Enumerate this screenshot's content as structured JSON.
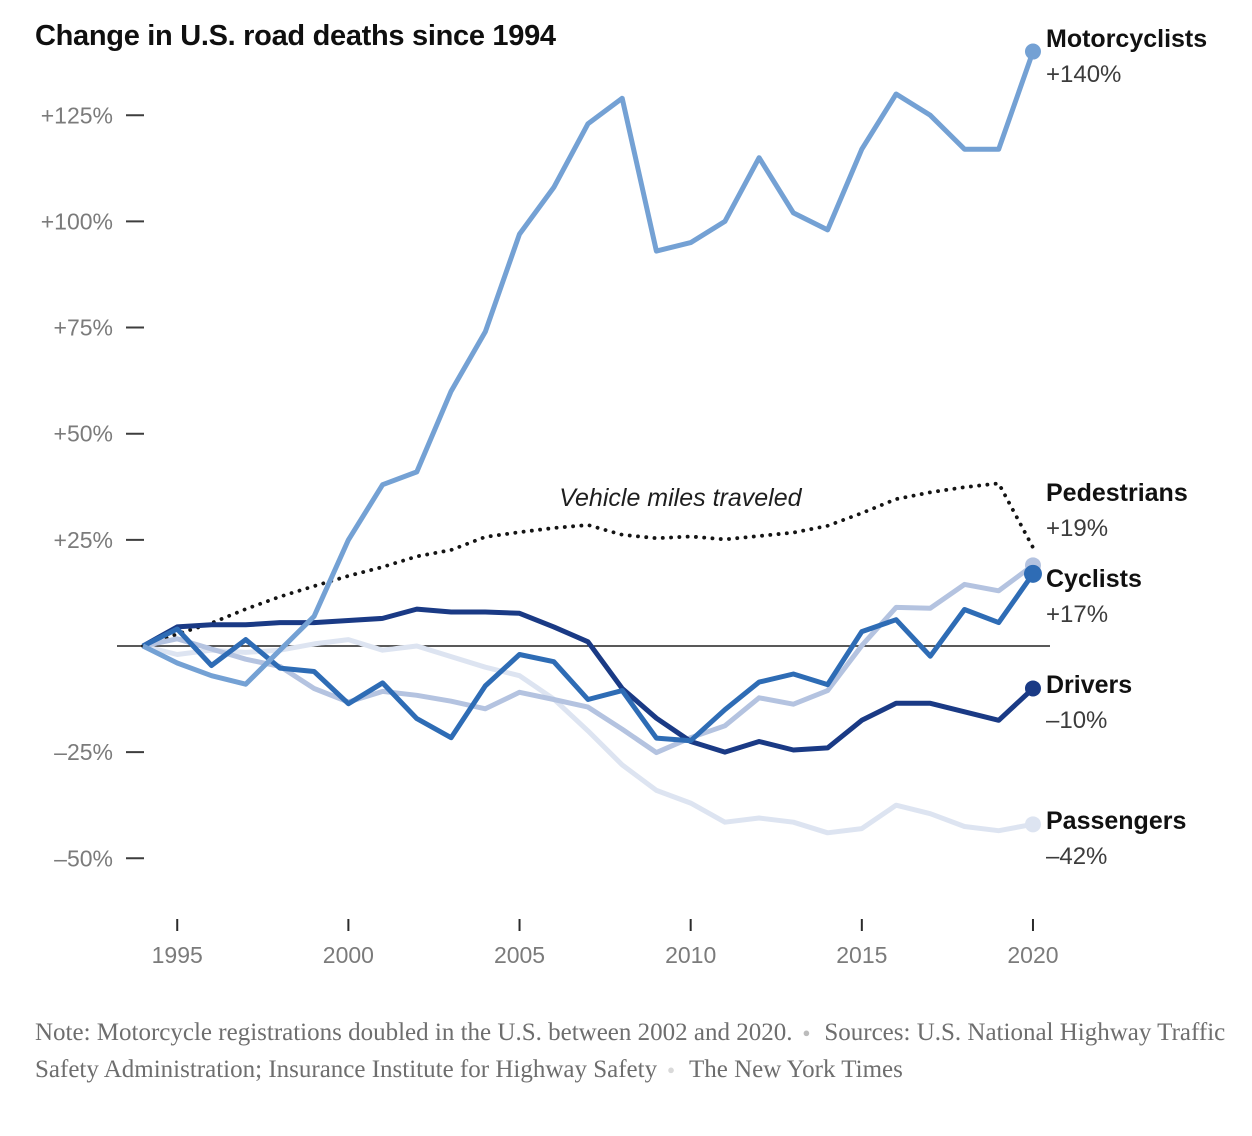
{
  "title": "Change in U.S. road deaths since 1994",
  "chart_data": {
    "type": "line",
    "x": [
      1994,
      1995,
      1996,
      1997,
      1998,
      1999,
      2000,
      2001,
      2002,
      2003,
      2004,
      2005,
      2006,
      2007,
      2008,
      2009,
      2010,
      2011,
      2012,
      2013,
      2014,
      2015,
      2016,
      2017,
      2018,
      2019,
      2020
    ],
    "x_ticks": [
      1995,
      2000,
      2005,
      2010,
      2015,
      2020
    ],
    "y_ticks": [
      {
        "label": "+125%",
        "value": 125
      },
      {
        "label": "+100%",
        "value": 100
      },
      {
        "label": "+75%",
        "value": 75
      },
      {
        "label": "+50%",
        "value": 50
      },
      {
        "label": "+25%",
        "value": 25
      },
      {
        "label": "–25%",
        "value": -25
      },
      {
        "label": "–50%",
        "value": -50
      }
    ],
    "ylim": [
      -60,
      145
    ],
    "baseline_value": 0,
    "grid": "off",
    "annotation": {
      "text": "Vehicle miles traveled",
      "x_year": 2009.7,
      "y_pct": 33
    },
    "series": [
      {
        "key": "motorcyclists",
        "name": "Motorcyclists",
        "label": "Motorcyclists",
        "value_label": "+140%",
        "color": "#74a1d4",
        "style": "solid",
        "z": 6,
        "end_dot": true,
        "values": [
          0,
          -4,
          -7,
          -9,
          -1,
          7,
          25,
          38,
          41,
          60,
          74,
          97,
          108,
          123,
          129,
          93,
          95,
          100,
          115,
          102,
          98,
          117,
          130,
          125,
          117,
          117,
          140
        ]
      },
      {
        "key": "pedestrians",
        "name": "Pedestrians",
        "label": "Pedestrians",
        "value_label": "+19%",
        "color": "#b4c3e0",
        "style": "solid",
        "z": 3,
        "end_dot": true,
        "values": [
          0,
          1.7,
          -0.7,
          -3.1,
          -4.8,
          -10,
          -13.2,
          -10.7,
          -11.6,
          -13,
          -14.8,
          -10.9,
          -12.6,
          -14.4,
          -19.6,
          -25.1,
          -21.6,
          -18.8,
          -12.2,
          -13.7,
          -10.5,
          0.1,
          9.1,
          8.9,
          14.5,
          13,
          19
        ]
      },
      {
        "key": "cyclists",
        "name": "Cyclists",
        "label": "Cyclists",
        "value_label": "+17%",
        "color": "#2e6cb5",
        "style": "solid",
        "z": 5,
        "end_dot": true,
        "values": [
          0,
          4,
          -4.6,
          1.5,
          -5.2,
          -6,
          -13.6,
          -8.7,
          -17.1,
          -21.6,
          -9.4,
          -2,
          -3.7,
          -12.6,
          -10.5,
          -21.7,
          -22.3,
          -15,
          -8.5,
          -6.6,
          -9.1,
          3.4,
          6.2,
          -2.4,
          8.6,
          5.5,
          17
        ]
      },
      {
        "key": "drivers",
        "name": "Drivers",
        "label": "Drivers",
        "value_label": "–10%",
        "color": "#1a3a85",
        "style": "solid",
        "z": 4,
        "end_dot": true,
        "values": [
          0,
          4.5,
          5,
          5,
          5.5,
          5.5,
          6,
          6.5,
          8.7,
          8,
          8,
          7.7,
          4.5,
          1,
          -10,
          -17,
          -22.5,
          -25,
          -22.5,
          -24.5,
          -24,
          -17.5,
          -13.5,
          -13.5,
          -15.5,
          -17.5,
          -10
        ]
      },
      {
        "key": "passengers",
        "name": "Passengers",
        "label": "Passengers",
        "value_label": "–42%",
        "color": "#dde4f1",
        "style": "solid",
        "z": 2,
        "end_dot": true,
        "values": [
          0,
          -2,
          -1,
          -1.5,
          -1,
          0.5,
          1.5,
          -1,
          0,
          -2.5,
          -5,
          -7,
          -12.5,
          -20,
          -28,
          -34,
          -37,
          -41.5,
          -40.5,
          -41.5,
          -44,
          -43,
          -37.5,
          -39.5,
          -42.5,
          -43.5,
          -42
        ]
      },
      {
        "key": "vehicle-miles-traveled",
        "name": "Vehicle miles traveled",
        "label": "",
        "value_label": "",
        "color": "#141414",
        "style": "dotted",
        "z": 1,
        "end_dot": false,
        "values": [
          0,
          2.8,
          5.4,
          8.7,
          11.6,
          14.1,
          16.5,
          18.6,
          21.1,
          22.6,
          25.7,
          26.8,
          27.8,
          28.5,
          26.2,
          25.4,
          25.8,
          25.1,
          25.9,
          26.7,
          28.3,
          31.3,
          34.6,
          36.2,
          37.4,
          38.3,
          23.2
        ]
      }
    ]
  },
  "note": {
    "bullet": "●",
    "part1": "Note: Motorcycle registrations doubled in the U.S. between 2002 and 2020.",
    "part2": "Sources: U.S. National Highway Traffic Safety Administration; Insurance Institute for Highway Safety",
    "part3": "The New York Times"
  }
}
